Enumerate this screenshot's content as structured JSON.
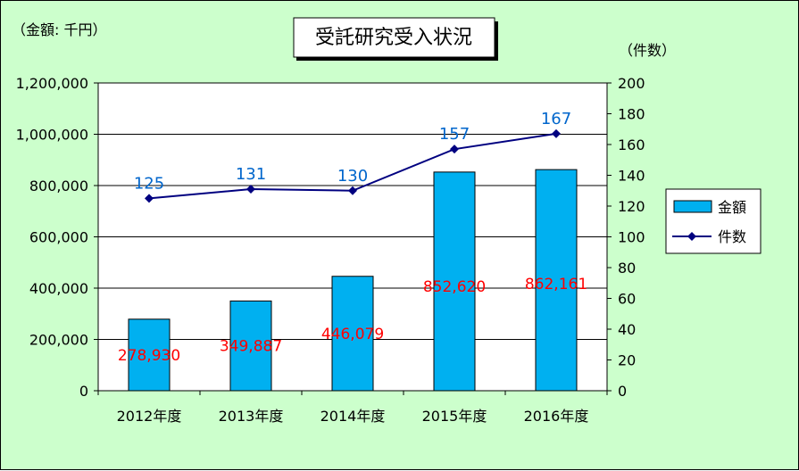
{
  "chart_data": {
    "type": "bar",
    "title": "受託研究受入状況",
    "categories": [
      "2012年度",
      "2013年度",
      "2014年度",
      "2015年度",
      "2016年度"
    ],
    "series": [
      {
        "name": "金額",
        "type": "bar",
        "axis": "left",
        "values": [
          278930,
          349887,
          446079,
          852620,
          862161
        ],
        "labels": [
          "278,930",
          "349,887",
          "446,079",
          "852,620",
          "862,161"
        ],
        "color": "#00b0f0"
      },
      {
        "name": "件数",
        "type": "line",
        "axis": "right",
        "values": [
          125,
          131,
          130,
          157,
          167
        ],
        "labels": [
          "125",
          "131",
          "130",
          "157",
          "167"
        ],
        "color": "#000080"
      }
    ],
    "ylabel": "（金額: 千円）",
    "y2label": "（件数）",
    "ylim": [
      0,
      1200000
    ],
    "y2lim": [
      0,
      200
    ],
    "yticks": [
      "0",
      "200,000",
      "400,000",
      "600,000",
      "800,000",
      "1,000,000",
      "1,200,000"
    ],
    "y2ticks": [
      "0",
      "20",
      "40",
      "60",
      "80",
      "100",
      "120",
      "140",
      "160",
      "180",
      "200"
    ],
    "grid": "horizontal",
    "legend": "right",
    "colors": {
      "background": "#ccffcc",
      "plot_background": "#ffffff",
      "bar_label": "#ff0000",
      "line_label": "#0066cc"
    }
  }
}
